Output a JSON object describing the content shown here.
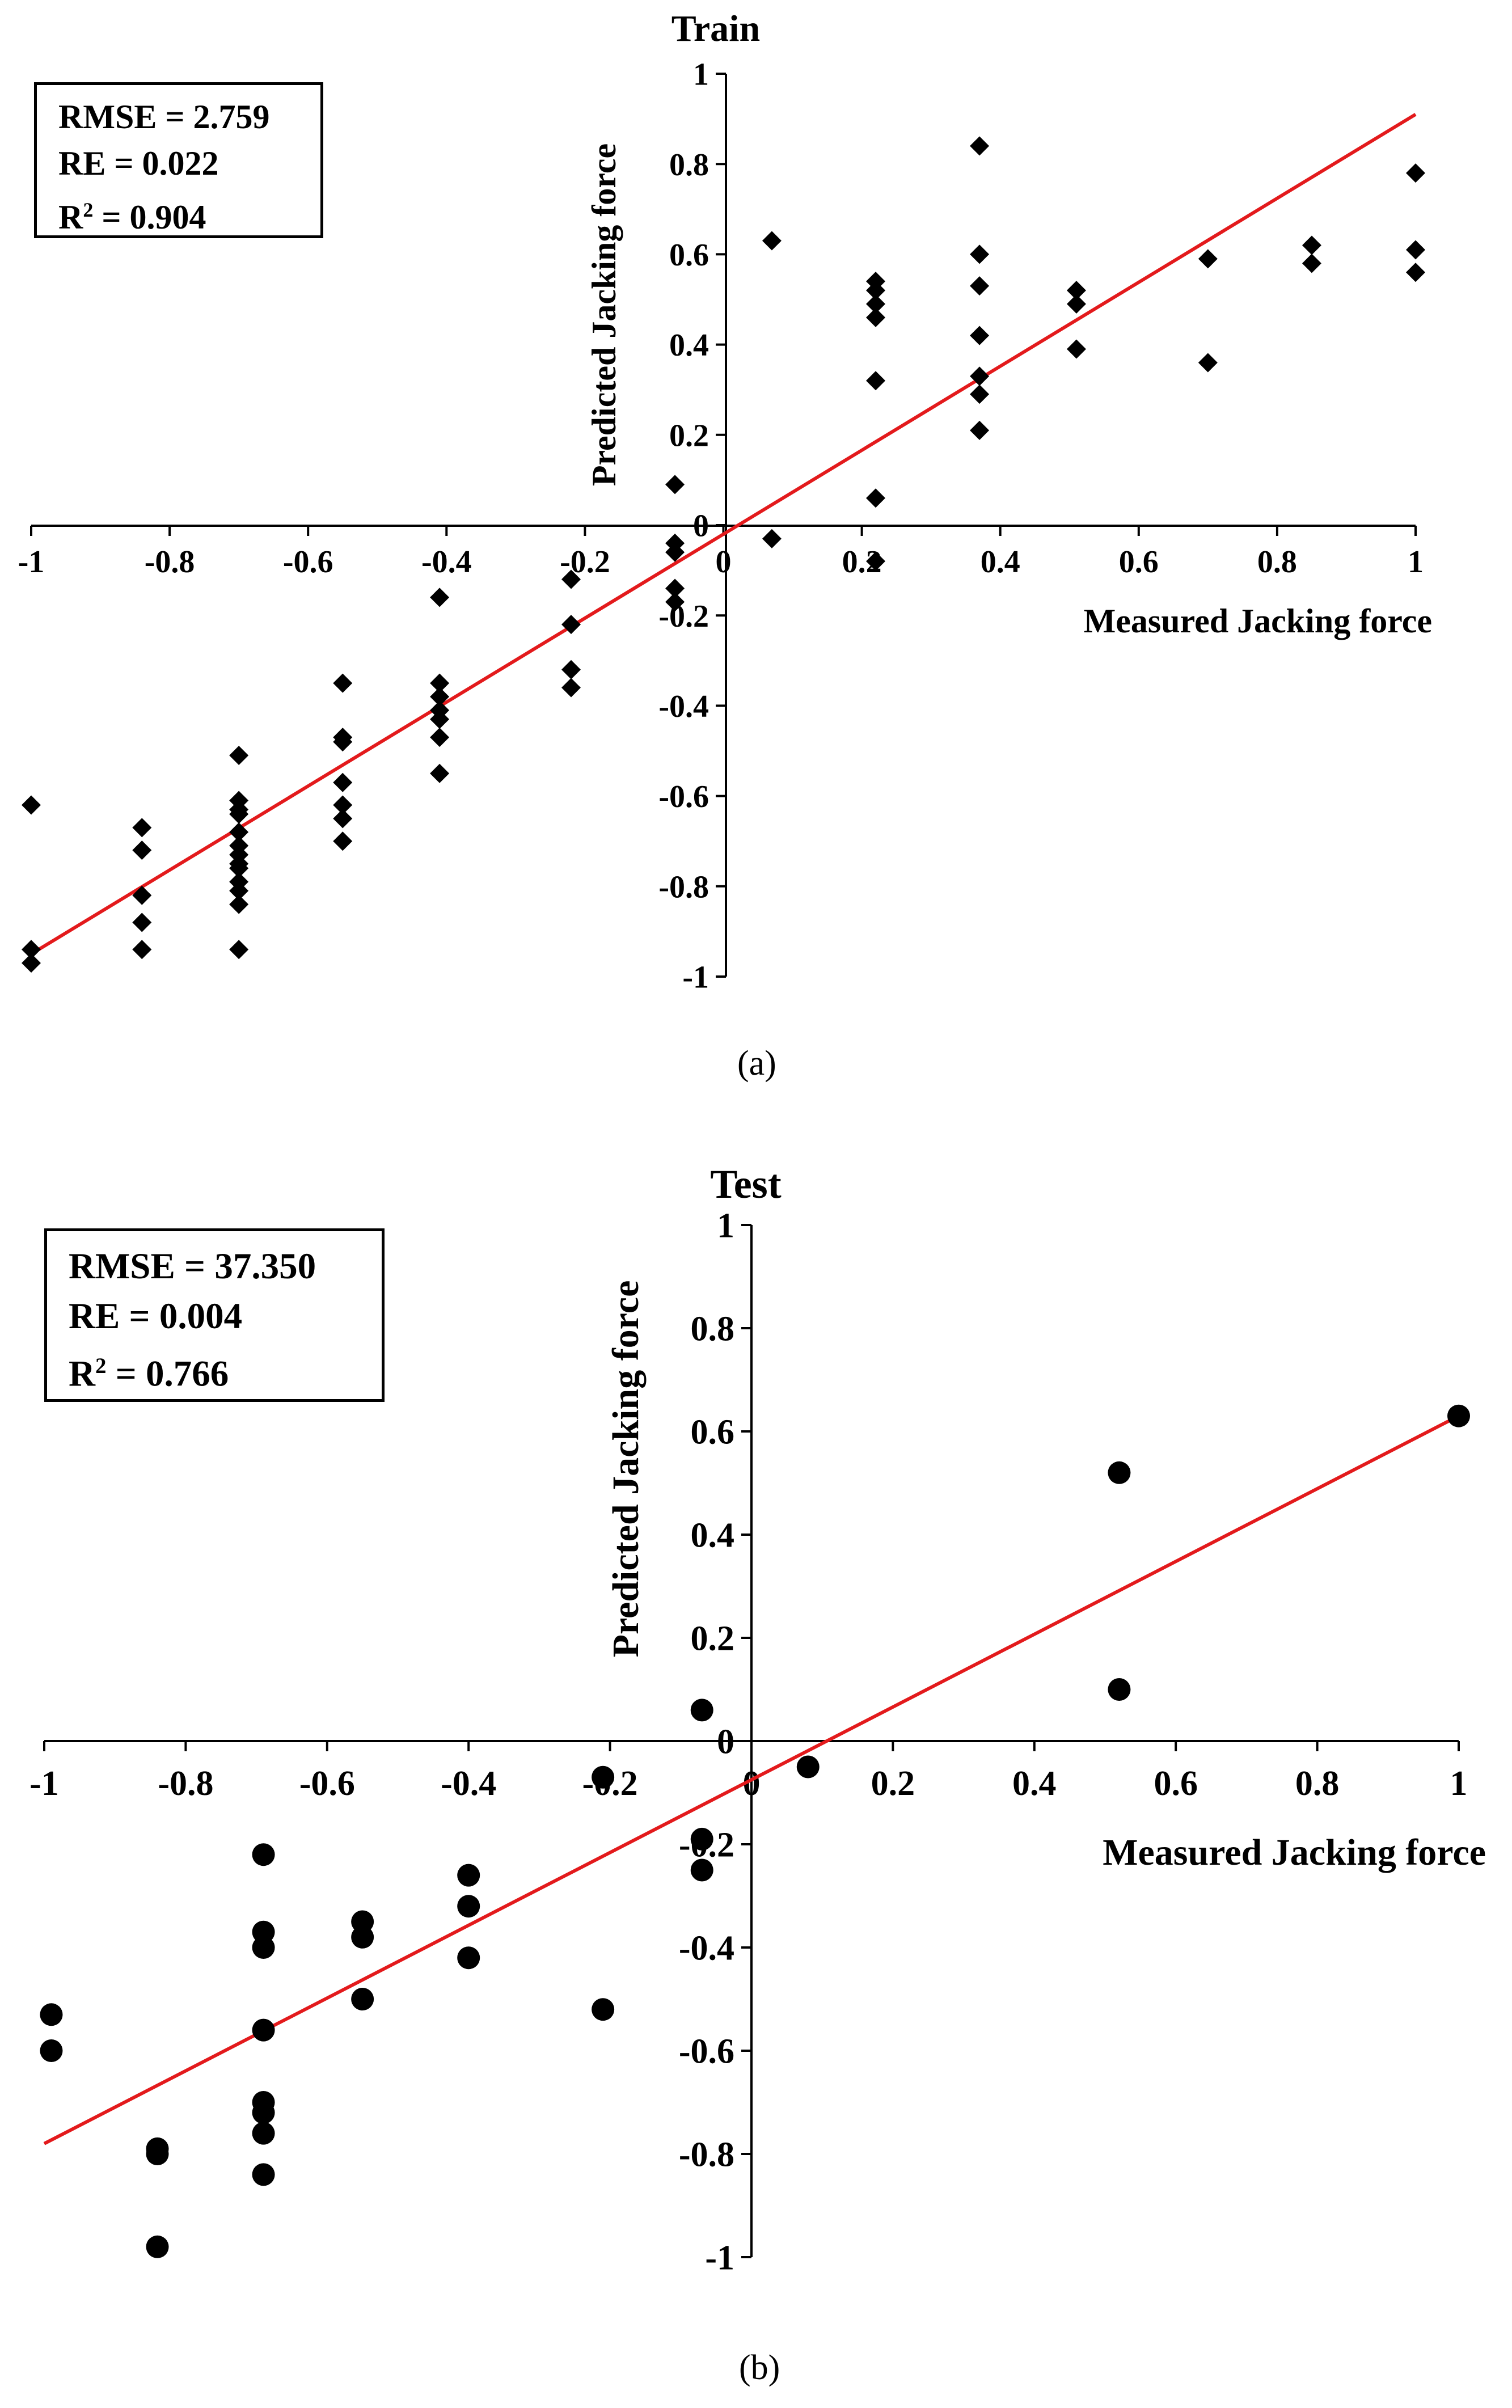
{
  "chart_data": [
    {
      "id": "a",
      "type": "scatter",
      "title": "Train",
      "xlabel": "Measured Jacking force",
      "ylabel": "Predicted Jacking force",
      "xlim": [
        -1,
        1
      ],
      "ylim": [
        -1,
        1
      ],
      "xticks": [
        "-1",
        "-0.8",
        "-0.6",
        "-0.4",
        "-0.2",
        "0",
        "0.2",
        "0.4",
        "0.6",
        "0.8",
        "1"
      ],
      "yticks": [
        "-1",
        "-0.8",
        "-0.6",
        "-0.4",
        "-0.2",
        "0",
        "0.2",
        "0.4",
        "0.6",
        "0.8",
        "1"
      ],
      "marker": "diamond",
      "grid": false,
      "stats": {
        "rmse": "RMSE = 2.759",
        "re": "RE = 0.022",
        "r2_prefix": "R",
        "r2_sup": "2",
        "r2_value": " = 0.904"
      },
      "caption": "(a)",
      "fit_line": {
        "color": "#e31a1c",
        "x": [
          -1,
          1
        ],
        "y": [
          -0.95,
          0.91
        ]
      },
      "points": [
        [
          -1,
          -0.62
        ],
        [
          -1,
          -0.94
        ],
        [
          -1,
          -0.97
        ],
        [
          -0.84,
          -0.67
        ],
        [
          -0.84,
          -0.72
        ],
        [
          -0.84,
          -0.82
        ],
        [
          -0.84,
          -0.88
        ],
        [
          -0.84,
          -0.94
        ],
        [
          -0.7,
          -0.51
        ],
        [
          -0.7,
          -0.61
        ],
        [
          -0.7,
          -0.63
        ],
        [
          -0.7,
          -0.64
        ],
        [
          -0.7,
          -0.68
        ],
        [
          -0.7,
          -0.71
        ],
        [
          -0.7,
          -0.73
        ],
        [
          -0.7,
          -0.75
        ],
        [
          -0.7,
          -0.76
        ],
        [
          -0.7,
          -0.79
        ],
        [
          -0.7,
          -0.81
        ],
        [
          -0.7,
          -0.84
        ],
        [
          -0.7,
          -0.94
        ],
        [
          -0.55,
          -0.35
        ],
        [
          -0.55,
          -0.47
        ],
        [
          -0.55,
          -0.48
        ],
        [
          -0.55,
          -0.57
        ],
        [
          -0.55,
          -0.62
        ],
        [
          -0.55,
          -0.65
        ],
        [
          -0.55,
          -0.7
        ],
        [
          -0.41,
          -0.16
        ],
        [
          -0.41,
          -0.35
        ],
        [
          -0.41,
          -0.38
        ],
        [
          -0.41,
          -0.41
        ],
        [
          -0.41,
          -0.43
        ],
        [
          -0.41,
          -0.47
        ],
        [
          -0.41,
          -0.55
        ],
        [
          -0.22,
          -0.12
        ],
        [
          -0.22,
          -0.22
        ],
        [
          -0.22,
          -0.32
        ],
        [
          -0.22,
          -0.36
        ],
        [
          -0.07,
          0.09
        ],
        [
          -0.07,
          -0.04
        ],
        [
          -0.07,
          -0.06
        ],
        [
          -0.07,
          -0.14
        ],
        [
          -0.07,
          -0.17
        ],
        [
          0.07,
          0.63
        ],
        [
          0.07,
          -0.03
        ],
        [
          0.22,
          0.54
        ],
        [
          0.22,
          0.52
        ],
        [
          0.22,
          0.49
        ],
        [
          0.22,
          0.46
        ],
        [
          0.22,
          0.32
        ],
        [
          0.22,
          0.06
        ],
        [
          0.22,
          -0.08
        ],
        [
          0.37,
          0.84
        ],
        [
          0.37,
          0.6
        ],
        [
          0.37,
          0.53
        ],
        [
          0.37,
          0.42
        ],
        [
          0.37,
          0.33
        ],
        [
          0.37,
          0.29
        ],
        [
          0.37,
          0.21
        ],
        [
          0.51,
          0.52
        ],
        [
          0.51,
          0.49
        ],
        [
          0.51,
          0.39
        ],
        [
          0.7,
          0.59
        ],
        [
          0.7,
          0.36
        ],
        [
          0.85,
          0.62
        ],
        [
          0.85,
          0.58
        ],
        [
          1,
          0.78
        ],
        [
          1,
          0.61
        ],
        [
          1,
          0.56
        ]
      ]
    },
    {
      "id": "b",
      "type": "scatter",
      "title": "Test",
      "xlabel": "Measured Jacking force",
      "ylabel": "Predicted Jacking force",
      "xlim": [
        -1,
        1
      ],
      "ylim": [
        -1,
        1
      ],
      "xticks": [
        "-1",
        "-0.8",
        "-0.6",
        "-0.4",
        "-0.2",
        "0",
        "0.2",
        "0.4",
        "0.6",
        "0.8",
        "1"
      ],
      "yticks": [
        "-1",
        "-0.8",
        "-0.6",
        "-0.4",
        "-0.2",
        "0",
        "0.2",
        "0.4",
        "0.6",
        "0.8",
        "1"
      ],
      "marker": "circle",
      "grid": false,
      "stats": {
        "rmse": "RMSE = 37.350",
        "re": "RE = 0.004",
        "r2_prefix": "R",
        "r2_sup": "2",
        "r2_value": " = 0.766"
      },
      "caption": "(b)",
      "fit_line": {
        "color": "#e31a1c",
        "x": [
          -1,
          1
        ],
        "y": [
          -0.78,
          0.63
        ]
      },
      "points": [
        [
          -0.99,
          -0.53
        ],
        [
          -0.99,
          -0.6
        ],
        [
          -0.84,
          -0.79
        ],
        [
          -0.84,
          -0.8
        ],
        [
          -0.84,
          -0.98
        ],
        [
          -0.69,
          -0.22
        ],
        [
          -0.69,
          -0.37
        ],
        [
          -0.69,
          -0.4
        ],
        [
          -0.69,
          -0.56
        ],
        [
          -0.69,
          -0.7
        ],
        [
          -0.69,
          -0.72
        ],
        [
          -0.69,
          -0.76
        ],
        [
          -0.69,
          -0.84
        ],
        [
          -0.55,
          -0.35
        ],
        [
          -0.55,
          -0.38
        ],
        [
          -0.55,
          -0.5
        ],
        [
          -0.4,
          -0.26
        ],
        [
          -0.4,
          -0.32
        ],
        [
          -0.4,
          -0.42
        ],
        [
          -0.21,
          -0.07
        ],
        [
          -0.21,
          -0.52
        ],
        [
          -0.07,
          0.06
        ],
        [
          -0.07,
          -0.19
        ],
        [
          -0.07,
          -0.25
        ],
        [
          0.08,
          -0.05
        ],
        [
          0.52,
          0.52
        ],
        [
          0.52,
          0.1
        ],
        [
          1,
          0.63
        ]
      ]
    }
  ]
}
